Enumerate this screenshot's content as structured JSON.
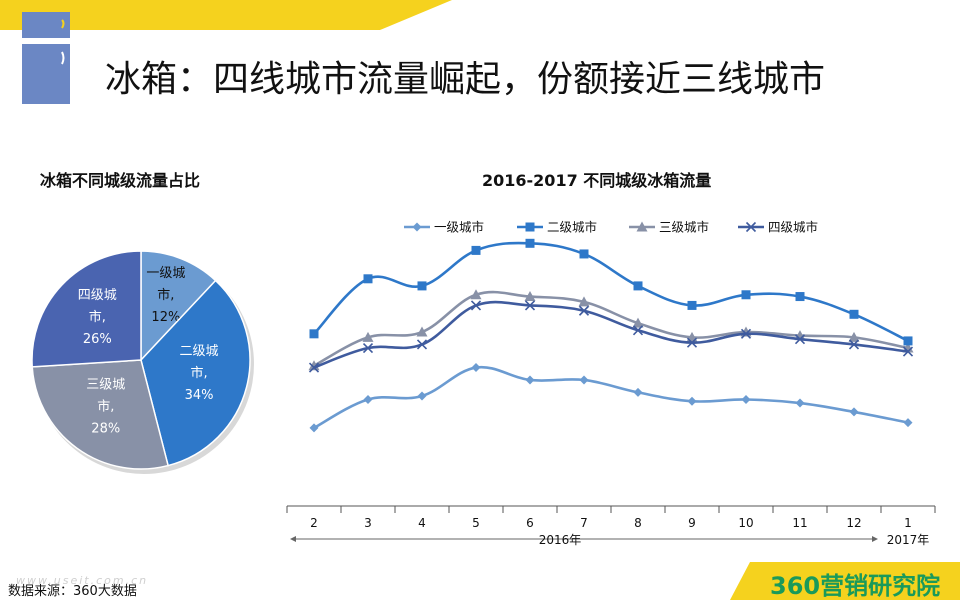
{
  "page": {
    "title": "冰箱：四线城市流量崛起，份额接近三线城市",
    "source": "数据来源：360大数据",
    "watermark": "www.useit.com.cn",
    "brand_num": "360",
    "brand_text": "营销研究院"
  },
  "colors": {
    "banner_yellow": "#f5d21e",
    "logo_blue": "#6b87c4",
    "tier1": "#6b9bd1",
    "tier2": "#2e78c9",
    "tier3": "#8891a7",
    "tier4": "#3f5b9e",
    "brand_green": "#1a9a5a"
  },
  "chart_data": [
    {
      "type": "pie",
      "title": "冰箱不同城级流量占比",
      "slices": [
        {
          "name": "一级城市",
          "value": 12,
          "label_lines": [
            "一级城",
            "市,",
            "12%"
          ],
          "color": "#6b9bd1"
        },
        {
          "name": "二级城市",
          "value": 34,
          "label_lines": [
            "二级城",
            "市,",
            "34%"
          ],
          "color": "#2e78c9"
        },
        {
          "name": "三级城市",
          "value": 28,
          "label_lines": [
            "三级城",
            "市,",
            "28%"
          ],
          "color": "#8891a7"
        },
        {
          "name": "四级城市",
          "value": 26,
          "label_lines": [
            "四级城",
            "市,",
            "26%"
          ],
          "color": "#4a64b0"
        }
      ]
    },
    {
      "type": "line",
      "title": "2016-2017 不同城级冰箱流量",
      "categories": [
        "2",
        "3",
        "4",
        "5",
        "6",
        "7",
        "8",
        "9",
        "10",
        "11",
        "12",
        "1"
      ],
      "period_labels": [
        "2016年",
        "2017年"
      ],
      "legend_position": "top",
      "grid": false,
      "series": [
        {
          "name": "一级城市",
          "marker": "diamond",
          "color": "#6b9bd1",
          "values": [
            22,
            30,
            31,
            39,
            35.5,
            35.5,
            32,
            29.5,
            30,
            29,
            26.5,
            23.5
          ]
        },
        {
          "name": "二级城市",
          "marker": "square",
          "color": "#2e78c9",
          "values": [
            48.5,
            64,
            62,
            72,
            74,
            71,
            62,
            56.5,
            59.5,
            59,
            54,
            46.5
          ]
        },
        {
          "name": "三级城市",
          "marker": "triangle",
          "color": "#8891a7",
          "values": [
            39.5,
            47.5,
            49,
            59.5,
            59,
            57.5,
            51.5,
            47.5,
            49,
            48,
            47.5,
            44.5
          ]
        },
        {
          "name": "四级城市",
          "marker": "x",
          "color": "#3f5b9e",
          "values": [
            39,
            44.5,
            45.5,
            56.5,
            56.5,
            55,
            49.5,
            46,
            48.5,
            47,
            45.5,
            43.5
          ]
        }
      ],
      "ylim": [
        0,
        80
      ]
    }
  ]
}
